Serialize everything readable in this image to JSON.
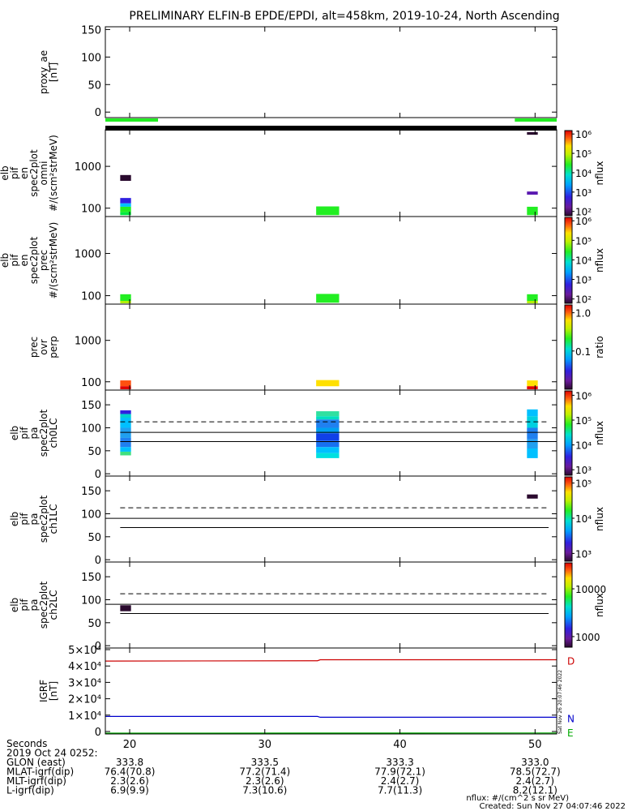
{
  "title": "PRELIMINARY ELFIN-B EPDE/EPDI, alt=458km, 2019-10-24, North Ascending",
  "x_axis": {
    "tick_labels": [
      "20",
      "30",
      "40",
      "50"
    ],
    "tick_values": [
      20,
      30,
      40,
      50
    ],
    "range": [
      18.2,
      51.6
    ]
  },
  "footer": {
    "rows": [
      {
        "label": "Seconds",
        "values": [
          "",
          "",
          "",
          ""
        ]
      },
      {
        "label": "2019 Oct 24 0252:",
        "values": [
          "",
          "",
          "",
          ""
        ]
      },
      {
        "label": "GLON (east)",
        "values": [
          "333.8",
          "333.5",
          "333.3",
          "333.0"
        ]
      },
      {
        "label": "MLAT-igrf(dip)",
        "values": [
          "76.4(70.8)",
          "77.2(71.4)",
          "77.9(72.1)",
          "78.5(72.7)"
        ]
      },
      {
        "label": "MLT-igrf(dip)",
        "values": [
          "2.3(2.6)",
          "2.3(2.6)",
          "2.4(2.7)",
          "2.4(2.7)"
        ]
      },
      {
        "label": "L-igrf(dip)",
        "values": [
          "6.9(9.9)",
          "7.3(10.6)",
          "7.7(11.3)",
          "8.2(12.1)"
        ]
      }
    ],
    "units_note": "nflux: #/(cm^2 s sr MeV)",
    "created": "Created: Sun Nov 27 04:07:46 2022",
    "side_stamp": "Sat Nov 26 20:07:46 2022"
  },
  "chart_data": [
    {
      "type": "line",
      "panel": "proxy_ae",
      "ylabel": [
        "proxy_ae",
        "[nT]"
      ],
      "ylim": [
        -10,
        155
      ],
      "yticks": [
        "150",
        "100",
        "50",
        "0"
      ],
      "ytick_values": [
        150,
        100,
        50,
        0
      ],
      "series": [],
      "coverage_bars": [
        {
          "x0": 18.2,
          "x1": 22.1,
          "color": "#22ee22"
        },
        {
          "x0": 48.5,
          "x1": 51.6,
          "color": "#22ee22"
        }
      ]
    },
    {
      "type": "heatmap",
      "panel": "omni",
      "ylabel": [
        "elb",
        "pif",
        "en",
        "spec2plot",
        "omni",
        "#/(scm²strMeV)"
      ],
      "yscale": "log",
      "ylim": [
        63,
        7500
      ],
      "yticks": [
        "1000",
        "100"
      ],
      "ytick_values": [
        1000,
        100
      ],
      "colorbar": {
        "label": "nflux",
        "scale": "log",
        "ticks": [
          "10⁶",
          "10⁵",
          "10⁴",
          "10³",
          "10²"
        ],
        "tick_values": [
          1000000,
          100000,
          10000,
          1000,
          100
        ],
        "range": [
          60,
          1500000
        ]
      },
      "cells": [
        {
          "x0": 19.3,
          "x1": 20.1,
          "y0": 450,
          "y1": 620,
          "color": "#2a0a2e"
        },
        {
          "x0": 19.3,
          "x1": 20.1,
          "y0": 130,
          "y1": 175,
          "color": "#3020e0"
        },
        {
          "x0": 19.3,
          "x1": 20.1,
          "y0": 108,
          "y1": 130,
          "color": "#00c0ff"
        },
        {
          "x0": 19.3,
          "x1": 20.1,
          "y0": 80,
          "y1": 108,
          "color": "#22ee22"
        },
        {
          "x0": 19.3,
          "x1": 20.1,
          "y0": 68,
          "y1": 80,
          "color": "#00e840"
        },
        {
          "x0": 33.8,
          "x1": 35.5,
          "y0": 68,
          "y1": 110,
          "color": "#22ee22"
        },
        {
          "x0": 49.4,
          "x1": 50.2,
          "y0": 5700,
          "y1": 6600,
          "color": "#2a0a2e"
        },
        {
          "x0": 49.4,
          "x1": 50.2,
          "y0": 210,
          "y1": 250,
          "color": "#5a18b0"
        },
        {
          "x0": 49.4,
          "x1": 50.2,
          "y0": 68,
          "y1": 108,
          "color": "#22ee22"
        }
      ]
    },
    {
      "type": "heatmap",
      "panel": "prec",
      "ylabel": [
        "elb",
        "pif",
        "en",
        "spec2plot",
        "prec",
        "#/(scm²strMeV)"
      ],
      "yscale": "log",
      "ylim": [
        63,
        7500
      ],
      "yticks": [
        "1000",
        "100"
      ],
      "ytick_values": [
        1000,
        100
      ],
      "colorbar": {
        "label": "nflux",
        "scale": "log",
        "ticks": [
          "10⁶",
          "10⁵",
          "10⁴",
          "10³",
          "10²"
        ],
        "tick_values": [
          1000000,
          100000,
          10000,
          1000,
          100
        ],
        "range": [
          60,
          1500000
        ]
      },
      "cells": [
        {
          "x0": 19.3,
          "x1": 20.1,
          "y0": 75,
          "y1": 108,
          "color": "#22ee22"
        },
        {
          "x0": 19.3,
          "x1": 20.1,
          "y0": 66,
          "y1": 75,
          "color": "#b0f000"
        },
        {
          "x0": 33.8,
          "x1": 35.5,
          "y0": 68,
          "y1": 110,
          "color": "#22ee22"
        },
        {
          "x0": 49.4,
          "x1": 50.2,
          "y0": 75,
          "y1": 108,
          "color": "#22ee22"
        },
        {
          "x0": 49.4,
          "x1": 50.2,
          "y0": 66,
          "y1": 75,
          "color": "#b0f000"
        }
      ]
    },
    {
      "type": "heatmap",
      "panel": "prec_ovr_perp",
      "ylabel": [
        "prec",
        "ovr",
        "perp"
      ],
      "yscale": "log",
      "ylim": [
        63,
        7500
      ],
      "yticks": [
        "1000",
        "100"
      ],
      "ytick_values": [
        1000,
        100
      ],
      "colorbar": {
        "label": "ratio",
        "scale": "log",
        "ticks": [
          "1.0",
          "0.1"
        ],
        "tick_values": [
          1.0,
          0.1
        ],
        "range": [
          0.01,
          1.6
        ]
      },
      "cells": [
        {
          "x0": 19.3,
          "x1": 20.1,
          "y0": 78,
          "y1": 108,
          "color": "#ff5010"
        },
        {
          "x0": 19.3,
          "x1": 20.1,
          "y0": 66,
          "y1": 78,
          "color": "#e00000"
        },
        {
          "x0": 33.8,
          "x1": 35.5,
          "y0": 78,
          "y1": 110,
          "color": "#ffe000"
        },
        {
          "x0": 49.4,
          "x1": 50.2,
          "y0": 78,
          "y1": 108,
          "color": "#ffe000"
        },
        {
          "x0": 49.4,
          "x1": 50.2,
          "y0": 66,
          "y1": 78,
          "color": "#e00000"
        }
      ]
    },
    {
      "type": "heatmap",
      "panel": "ch0LC",
      "ylabel": [
        "elb",
        "pif",
        "pa",
        "spec2plot",
        "ch0LC"
      ],
      "ylim": [
        -5,
        182
      ],
      "yticks": [
        "150",
        "100",
        "50",
        "0"
      ],
      "ytick_values": [
        150,
        100,
        50,
        0
      ],
      "colorbar": {
        "label": "nflux",
        "scale": "log",
        "ticks": [
          "10⁶",
          "10⁵",
          "10⁴",
          "10³"
        ],
        "tick_values": [
          1000000,
          100000,
          10000,
          1000
        ],
        "range": [
          600,
          1500000
        ]
      },
      "lines": [
        {
          "style": "dashed",
          "points": [
            [
              19.3,
              113
            ],
            [
              51.0,
              113
            ]
          ]
        },
        {
          "style": "solid",
          "points": [
            [
              19.3,
              90
            ],
            [
              51.6,
              90
            ]
          ]
        },
        {
          "style": "solid",
          "points": [
            [
              19.3,
              70
            ],
            [
              51.6,
              70
            ]
          ]
        }
      ],
      "cells": [
        {
          "x0": 19.3,
          "x1": 20.1,
          "y0": 130,
          "y1": 138,
          "color": "#3020e0"
        },
        {
          "x0": 19.3,
          "x1": 20.1,
          "y0": 122,
          "y1": 130,
          "color": "#00d0d0"
        },
        {
          "x0": 19.3,
          "x1": 20.1,
          "y0": 100,
          "y1": 122,
          "color": "#00c0ff"
        },
        {
          "x0": 19.3,
          "x1": 20.1,
          "y0": 78,
          "y1": 100,
          "color": "#20a0f0"
        },
        {
          "x0": 19.3,
          "x1": 20.1,
          "y0": 58,
          "y1": 78,
          "color": "#2080f0"
        },
        {
          "x0": 19.3,
          "x1": 20.1,
          "y0": 48,
          "y1": 58,
          "color": "#00c0ff"
        },
        {
          "x0": 19.3,
          "x1": 20.1,
          "y0": 40,
          "y1": 48,
          "color": "#40e080"
        },
        {
          "x0": 33.8,
          "x1": 35.5,
          "y0": 125,
          "y1": 136,
          "color": "#30e0a0"
        },
        {
          "x0": 33.8,
          "x1": 35.5,
          "y0": 118,
          "y1": 125,
          "color": "#00e0c0"
        },
        {
          "x0": 33.8,
          "x1": 35.5,
          "y0": 100,
          "y1": 118,
          "color": "#2080f0"
        },
        {
          "x0": 33.8,
          "x1": 35.5,
          "y0": 88,
          "y1": 100,
          "color": "#00a0f0"
        },
        {
          "x0": 33.8,
          "x1": 35.5,
          "y0": 72,
          "y1": 88,
          "color": "#1040e8"
        },
        {
          "x0": 33.8,
          "x1": 35.5,
          "y0": 58,
          "y1": 72,
          "color": "#1870f0"
        },
        {
          "x0": 33.8,
          "x1": 35.5,
          "y0": 45,
          "y1": 58,
          "color": "#00c0ff"
        },
        {
          "x0": 33.8,
          "x1": 35.5,
          "y0": 34,
          "y1": 45,
          "color": "#00e0e0"
        },
        {
          "x0": 49.4,
          "x1": 50.2,
          "y0": 125,
          "y1": 140,
          "color": "#00c0ff"
        },
        {
          "x0": 49.4,
          "x1": 50.2,
          "y0": 100,
          "y1": 125,
          "color": "#00d0e0"
        },
        {
          "x0": 49.4,
          "x1": 50.2,
          "y0": 75,
          "y1": 100,
          "color": "#2080f0"
        },
        {
          "x0": 49.4,
          "x1": 50.2,
          "y0": 55,
          "y1": 75,
          "color": "#20a0f0"
        },
        {
          "x0": 49.4,
          "x1": 50.2,
          "y0": 34,
          "y1": 55,
          "color": "#00c0ff"
        }
      ]
    },
    {
      "type": "heatmap",
      "panel": "ch1LC",
      "ylabel": [
        "elb",
        "pif",
        "pa",
        "spec2plot",
        "ch1LC"
      ],
      "ylim": [
        -5,
        182
      ],
      "yticks": [
        "150",
        "100",
        "50",
        "0"
      ],
      "ytick_values": [
        150,
        100,
        50,
        0
      ],
      "colorbar": {
        "label": "nflux",
        "scale": "log",
        "ticks": [
          "10⁵",
          "10⁴",
          "10³"
        ],
        "tick_values": [
          100000,
          10000,
          1000
        ],
        "range": [
          600,
          150000
        ]
      },
      "lines": [
        {
          "style": "dashed",
          "points": [
            [
              19.3,
              113
            ],
            [
              51.0,
              113
            ]
          ]
        },
        {
          "style": "solid",
          "points": [
            [
              18.2,
              90
            ],
            [
              51.6,
              90
            ]
          ]
        },
        {
          "style": "solid",
          "points": [
            [
              19.3,
              70
            ],
            [
              51.0,
              70
            ]
          ]
        }
      ],
      "cells": [
        {
          "x0": 49.4,
          "x1": 50.2,
          "y0": 133,
          "y1": 142,
          "color": "#2a0a2e"
        }
      ]
    },
    {
      "type": "heatmap",
      "panel": "ch2LC",
      "ylabel": [
        "elb",
        "pif",
        "pa",
        "spec2plot",
        "ch2LC"
      ],
      "ylim": [
        -5,
        182
      ],
      "yticks": [
        "150",
        "100",
        "50",
        "0"
      ],
      "ytick_values": [
        150,
        100,
        50,
        0
      ],
      "colorbar": {
        "label": "nflux",
        "scale": "log",
        "ticks": [
          "10000",
          "1000"
        ],
        "tick_values": [
          10000,
          1000
        ],
        "range": [
          600,
          35000
        ]
      },
      "lines": [
        {
          "style": "dashed",
          "points": [
            [
              19.3,
              113
            ],
            [
              51.0,
              113
            ]
          ]
        },
        {
          "style": "solid",
          "points": [
            [
              18.2,
              90
            ],
            [
              51.6,
              90
            ]
          ]
        },
        {
          "style": "solid",
          "points": [
            [
              19.3,
              70
            ],
            [
              51.0,
              70
            ]
          ]
        }
      ],
      "cells": [
        {
          "x0": 19.3,
          "x1": 20.1,
          "y0": 75,
          "y1": 88,
          "color": "#2a0a2e"
        }
      ]
    },
    {
      "type": "line",
      "panel": "IGRF",
      "ylabel": [
        "IGRF",
        "[nT]"
      ],
      "ylim": [
        -1500,
        51000
      ],
      "yticks": [
        "5×10⁴",
        "4×10⁴",
        "3×10⁴",
        "2×10⁴",
        "1×10⁴",
        "0"
      ],
      "ytick_values": [
        50000,
        40000,
        30000,
        20000,
        10000,
        0
      ],
      "series": [
        {
          "name": "D",
          "color": "#cc0000",
          "points": [
            [
              18.2,
              43000
            ],
            [
              33.9,
              43200
            ],
            [
              34.1,
              43800
            ],
            [
              51.6,
              43800
            ]
          ]
        },
        {
          "name": "N",
          "color": "#0000cc",
          "points": [
            [
              18.2,
              9200
            ],
            [
              33.9,
              9200
            ],
            [
              34.1,
              8700
            ],
            [
              51.6,
              8700
            ]
          ]
        },
        {
          "name": "E",
          "color": "#00aa00",
          "points": [
            [
              18.2,
              -1000
            ],
            [
              51.6,
              -900
            ]
          ]
        }
      ]
    }
  ]
}
